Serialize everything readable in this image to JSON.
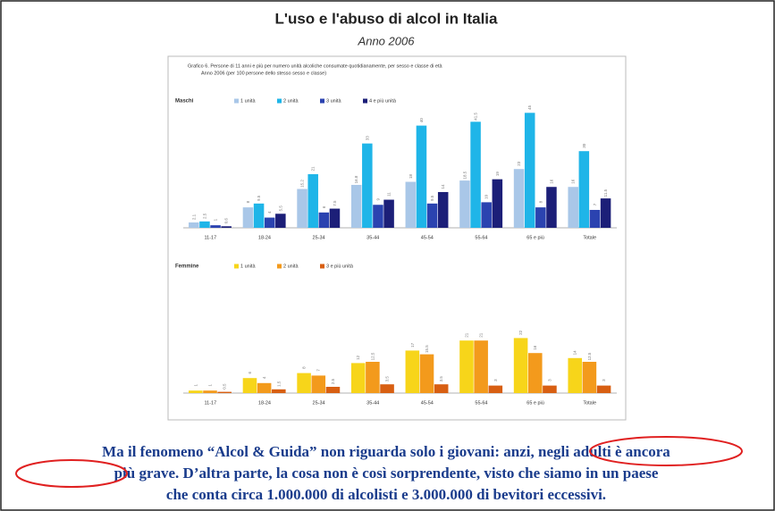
{
  "title": "L'uso e l'abuso di alcol in Italia",
  "subtitle": "Anno 2006",
  "note": "Grafico 6. Persone di 11 anni e più per numero unità alcoliche consumate quotidianamente, per sesso e classe di età",
  "note2": "Anno 2006 (per 100 persone dello stesso sesso e classe)",
  "caption": [
    "Ma il fenomeno “Alcol & Guida” non riguarda solo i giovani: anzi, negli adulti è ancora",
    "più grave. D’altra parte, la cosa non è così sorprendente, visto che siamo in un paese",
    "che conta circa 1.000.000 di alcolisti e 3.000.000 di bevitori eccessivi."
  ],
  "chart_data": [
    {
      "type": "bar",
      "title": "Maschi",
      "categories": [
        "11-17",
        "18-24",
        "25-34",
        "35-44",
        "45-54",
        "55-64",
        "65 e più",
        "Totale"
      ],
      "ylim": [
        0,
        50
      ],
      "series": [
        {
          "name": "1 unità",
          "color": "#a9c7e8",
          "values": [
            2.1,
            8.0,
            15.2,
            16.8,
            18.0,
            18.5,
            23.0,
            16.0
          ]
        },
        {
          "name": "2 unità",
          "color": "#1fb5e8",
          "values": [
            2.5,
            9.5,
            21.0,
            33.0,
            40.0,
            41.5,
            45.0,
            30.0
          ]
        },
        {
          "name": "3 unità",
          "color": "#2b43b0",
          "values": [
            1.0,
            4.0,
            6.0,
            9.0,
            9.5,
            10.0,
            8.0,
            7.0
          ]
        },
        {
          "name": "4 e più unità",
          "color": "#1c1f78",
          "values": [
            0.6,
            5.5,
            7.5,
            11.0,
            14.0,
            19.0,
            16.0,
            11.5
          ]
        }
      ]
    },
    {
      "type": "bar",
      "title": "Femmine",
      "categories": [
        "11-17",
        "18-24",
        "25-34",
        "35-44",
        "45-54",
        "55-64",
        "65 e più",
        "Totale"
      ],
      "ylim": [
        0,
        50
      ],
      "series": [
        {
          "name": "1 unità",
          "color": "#f7d51a",
          "values": [
            1.0,
            6.0,
            8.0,
            12.0,
            17.0,
            21.0,
            22.0,
            14.0
          ]
        },
        {
          "name": "2 unità",
          "color": "#f39a1c",
          "values": [
            1.0,
            4.0,
            7.0,
            12.5,
            15.5,
            21.0,
            16.0,
            12.5
          ]
        },
        {
          "name": "3 e più unità",
          "color": "#d85f12",
          "values": [
            0.5,
            1.5,
            2.5,
            3.5,
            3.5,
            3.0,
            3.0,
            3.0
          ]
        }
      ]
    }
  ]
}
